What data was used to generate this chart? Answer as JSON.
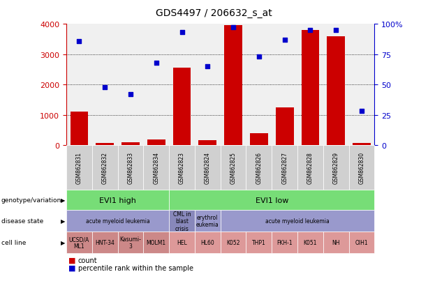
{
  "title": "GDS4497 / 206632_s_at",
  "samples": [
    "GSM862831",
    "GSM862832",
    "GSM862833",
    "GSM862834",
    "GSM862823",
    "GSM862824",
    "GSM862825",
    "GSM862826",
    "GSM862827",
    "GSM862828",
    "GSM862829",
    "GSM862830"
  ],
  "bar_values": [
    1100,
    60,
    100,
    190,
    2560,
    170,
    3950,
    390,
    1250,
    3800,
    3580,
    80
  ],
  "percentile_values": [
    86,
    48,
    42,
    68,
    93,
    65,
    97,
    73,
    87,
    95,
    95,
    28
  ],
  "bar_color": "#cc0000",
  "dot_color": "#0000cc",
  "ylim_left": [
    0,
    4000
  ],
  "ylim_right": [
    0,
    100
  ],
  "yticks_left": [
    0,
    1000,
    2000,
    3000,
    4000
  ],
  "yticks_right": [
    0,
    25,
    50,
    75,
    100
  ],
  "ytick_labels_right": [
    "0",
    "25",
    "50",
    "75",
    "100%"
  ],
  "grid_lines": [
    1000,
    2000,
    3000
  ],
  "row_labels": [
    "genotype/variation",
    "disease state",
    "cell line"
  ],
  "geno_groups": [
    {
      "label": "EVI1 high",
      "start": 0,
      "end": 4,
      "color": "#77dd77"
    },
    {
      "label": "EVI1 low",
      "start": 4,
      "end": 12,
      "color": "#77dd77"
    }
  ],
  "disease_groups": [
    {
      "label": "acute myeloid leukemia",
      "start": 0,
      "end": 4,
      "color": "#9999cc"
    },
    {
      "label": "CML in\nblast\ncrisis",
      "start": 4,
      "end": 5,
      "color": "#8888bb"
    },
    {
      "label": "erythrol\neukemia",
      "start": 5,
      "end": 6,
      "color": "#9999cc"
    },
    {
      "label": "acute myeloid leukemia",
      "start": 6,
      "end": 12,
      "color": "#9999cc"
    }
  ],
  "cell_groups": [
    {
      "label": "UCSD/A\nML1",
      "start": 0,
      "end": 1,
      "color": "#cc8888"
    },
    {
      "label": "HNT-34",
      "start": 1,
      "end": 2,
      "color": "#cc8888"
    },
    {
      "label": "Kasumi-\n3",
      "start": 2,
      "end": 3,
      "color": "#cc8888"
    },
    {
      "label": "MOLM1",
      "start": 3,
      "end": 4,
      "color": "#cc8888"
    },
    {
      "label": "HEL",
      "start": 4,
      "end": 5,
      "color": "#dd9999"
    },
    {
      "label": "HL60",
      "start": 5,
      "end": 6,
      "color": "#dd9999"
    },
    {
      "label": "K052",
      "start": 6,
      "end": 7,
      "color": "#dd9999"
    },
    {
      "label": "THP1",
      "start": 7,
      "end": 8,
      "color": "#dd9999"
    },
    {
      "label": "FKH-1",
      "start": 8,
      "end": 9,
      "color": "#dd9999"
    },
    {
      "label": "K051",
      "start": 9,
      "end": 10,
      "color": "#dd9999"
    },
    {
      "label": "NH",
      "start": 10,
      "end": 11,
      "color": "#dd9999"
    },
    {
      "label": "OIH1",
      "start": 11,
      "end": 12,
      "color": "#dd9999"
    }
  ],
  "legend_items": [
    {
      "label": "count",
      "color": "#cc0000"
    },
    {
      "label": "percentile rank within the sample",
      "color": "#0000cc"
    }
  ],
  "axis_bg_color": "#f0f0f0",
  "sample_box_color": "#d0d0d0"
}
